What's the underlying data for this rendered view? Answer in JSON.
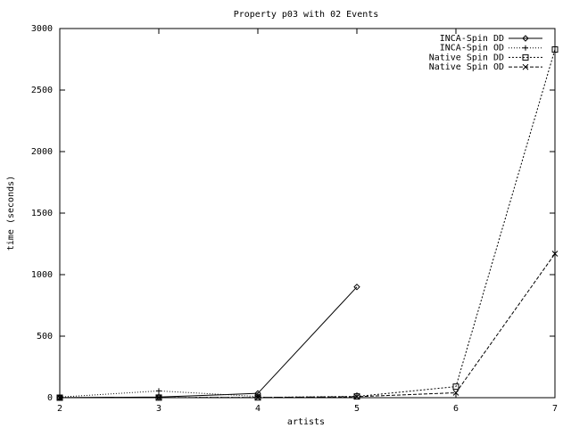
{
  "chart_data": {
    "type": "line",
    "title": "Property p03 with 02 Events",
    "x_label": "artists",
    "y_label": "time (seconds)",
    "xlim": [
      2,
      7
    ],
    "xticks": [
      2,
      3,
      4,
      5,
      6,
      7
    ],
    "ylim": [
      0,
      3000
    ],
    "yticks": [
      0,
      500,
      1000,
      1500,
      2000,
      2500,
      3000
    ],
    "legend": "top-right",
    "series": [
      {
        "name": "INCA-Spin DD",
        "color": "#000000",
        "marker": "diamond",
        "line_style": "solid",
        "x": [
          2,
          3,
          4,
          5
        ],
        "values": [
          1,
          5,
          35,
          900
        ]
      },
      {
        "name": "INCA-Spin OD",
        "color": "#000000",
        "marker": "plus",
        "line_style": "dotted",
        "x": [
          2,
          3,
          4
        ],
        "values": [
          5,
          55,
          10
        ]
      },
      {
        "name": "Native Spin DD",
        "color": "#000000",
        "marker": "square",
        "line_style": "dashed-fine",
        "x": [
          2,
          3,
          4,
          5,
          6,
          7
        ],
        "values": [
          0,
          1,
          2,
          10,
          90,
          2830
        ]
      },
      {
        "name": "Native Spin OD",
        "color": "#000000",
        "marker": "cross",
        "line_style": "dashed",
        "x": [
          2,
          3,
          4,
          5,
          6,
          7
        ],
        "values": [
          0,
          1,
          2,
          8,
          40,
          1170
        ]
      }
    ]
  }
}
